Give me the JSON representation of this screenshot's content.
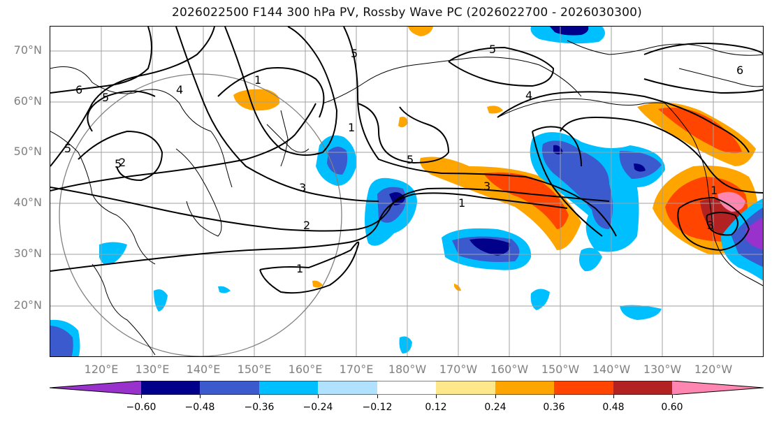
{
  "title": "2026022500 F144 300 hPa PV, Rossby Wave PC (2026022700 - 2026030300)",
  "map": {
    "lat_labels": [
      "70°N",
      "60°N",
      "50°N",
      "40°N",
      "30°N",
      "20°N"
    ],
    "lon_labels": [
      "120°E",
      "130°E",
      "140°E",
      "150°E",
      "160°E",
      "170°E",
      "180°W",
      "170°W",
      "160°W",
      "150°W",
      "140°W",
      "130°W",
      "120°W"
    ],
    "contour_labels": [
      "6",
      "5",
      "5",
      "4",
      "5",
      "2",
      "3",
      "2",
      "1",
      "1",
      "5",
      "4",
      "5",
      "3",
      "1",
      "1",
      "3",
      "6",
      "1",
      "5"
    ]
  },
  "colorbar": {
    "labels": [
      "−0.60",
      "−0.48",
      "−0.36",
      "−0.24",
      "−0.12",
      "0.12",
      "0.24",
      "0.36",
      "0.48",
      "0.60"
    ],
    "colors": [
      "#9932cc",
      "#00008b",
      "#3a5acd",
      "#00bfff",
      "#b0e2ff",
      "#ffffff",
      "#ffe88c",
      "#ffa500",
      "#ff4500",
      "#b22222",
      "#ff86b0"
    ]
  }
}
